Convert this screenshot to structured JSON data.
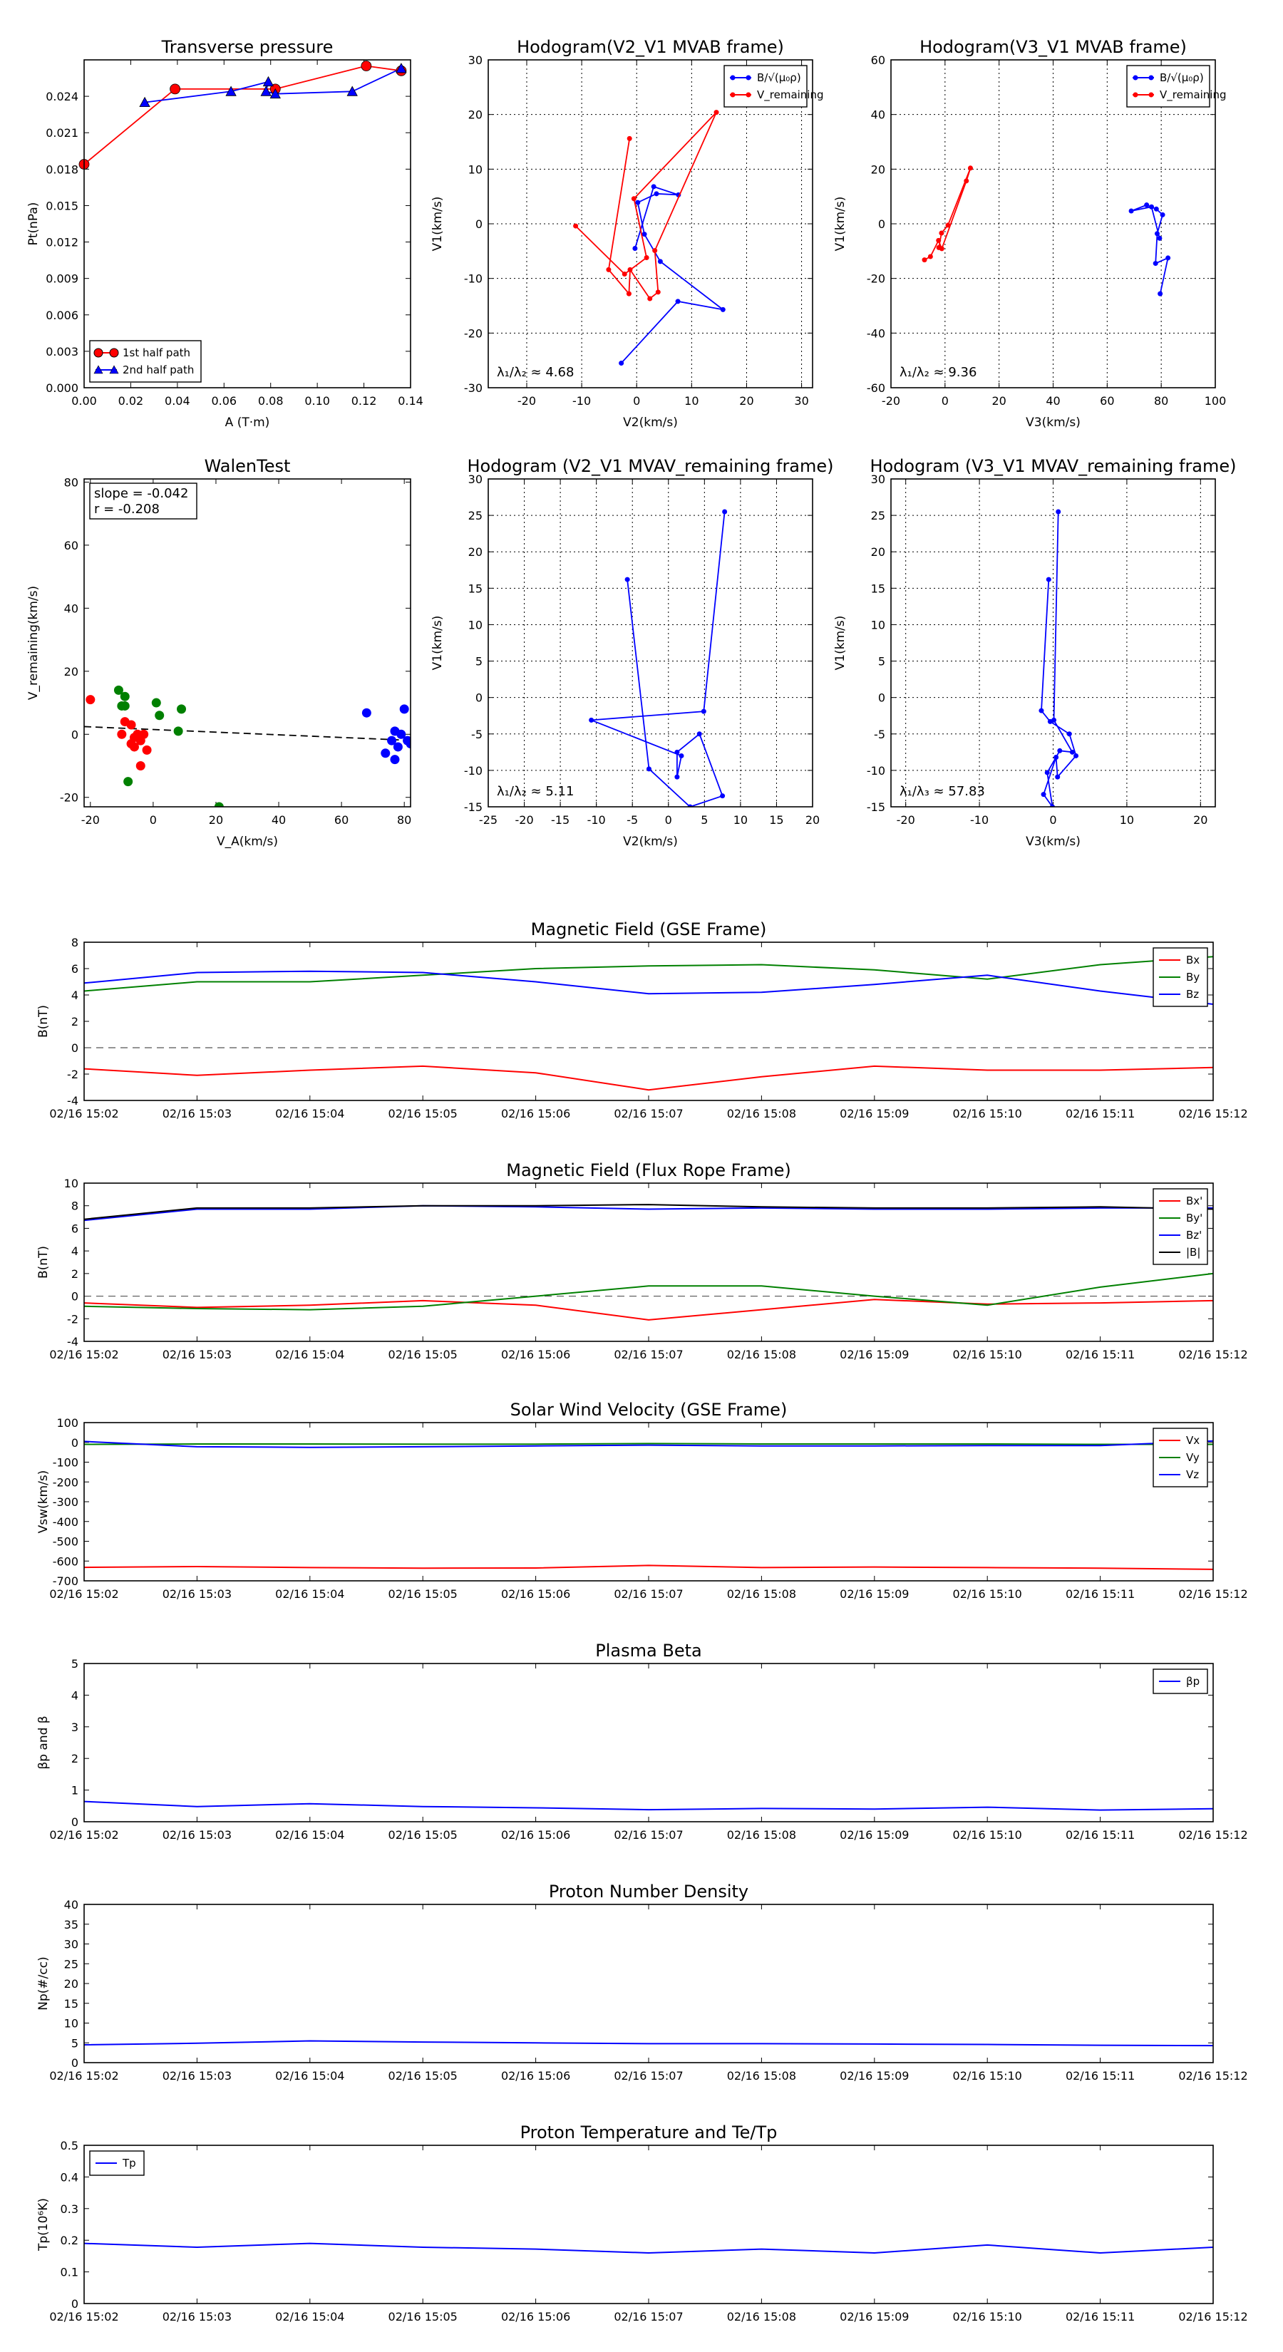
{
  "time_ticks": [
    "02/16 15:02",
    "02/16 15:03",
    "02/16 15:04",
    "02/16 15:05",
    "02/16 15:06",
    "02/16 15:07",
    "02/16 15:08",
    "02/16 15:09",
    "02/16 15:10",
    "02/16 15:11",
    "02/16 15:12"
  ],
  "chart_data": [
    {
      "id": "tp",
      "type": "scatter-line",
      "title": "Transverse pressure",
      "xlabel": "A (T·m)",
      "ylabel": "Pt(nPa)",
      "xlim": [
        0,
        0.14
      ],
      "ylim": [
        0,
        0.027
      ],
      "xticks": [
        0,
        0.02,
        0.04,
        0.06,
        0.08,
        0.1,
        0.12,
        0.14
      ],
      "yticks": [
        0,
        0.003,
        0.006,
        0.009,
        0.012,
        0.015,
        0.018,
        0.021,
        0.024
      ],
      "xfmt": 2,
      "yfmt": 3,
      "grid": false,
      "legend": "lower-left",
      "series": [
        {
          "name": "1st half path",
          "color": "#ff0000",
          "marker": "circle",
          "x": [
            0.0,
            0.039,
            0.082,
            0.121,
            0.136
          ],
          "y": [
            0.0184,
            0.0246,
            0.0246,
            0.0265,
            0.0261
          ]
        },
        {
          "name": "2nd half path",
          "color": "#0000ff",
          "marker": "triangle",
          "x": [
            0.136,
            0.115,
            0.082,
            0.078,
            0.079,
            0.063,
            0.026
          ],
          "y": [
            0.0263,
            0.0244,
            0.0242,
            0.0244,
            0.0252,
            0.0244,
            0.0235
          ]
        }
      ]
    },
    {
      "id": "hod1",
      "type": "line",
      "title": "Hodogram(V2_V1 MVAB frame)",
      "xlabel": "V2(km/s)",
      "ylabel": "V1(km/s)",
      "xlim": [
        -27,
        32
      ],
      "ylim": [
        -30,
        30
      ],
      "xticks": [
        -20,
        -10,
        0,
        10,
        20,
        30
      ],
      "yticks": [
        -30,
        -20,
        -10,
        0,
        10,
        20,
        30
      ],
      "grid": true,
      "legend": "top-right",
      "annotation": "λ₁/λ₂ ≈ 4.68",
      "series": [
        {
          "name": "B/√(μ₀ρ)",
          "color": "#0000ff",
          "marker": "circle",
          "x": [
            -2.8,
            7.5,
            15.7,
            4.3,
            1.4,
            0.2,
            3.6,
            7.6,
            3.1,
            -0.3
          ],
          "y": [
            -25.5,
            -14.2,
            -15.7,
            -6.9,
            -1.9,
            3.9,
            5.5,
            5.3,
            6.8,
            -4.5
          ]
        },
        {
          "name": "V_remaining",
          "color": "#ff0000",
          "marker": "circle",
          "x": [
            -1.3,
            -5.1,
            -1.4,
            -1.2,
            2.4,
            3.9,
            3.3,
            14.5,
            -0.5,
            1.8,
            -2.2,
            -11.1
          ],
          "y": [
            15.6,
            -8.4,
            -12.8,
            -8.4,
            -13.7,
            -12.5,
            -4.9,
            20.4,
            4.6,
            -6.2,
            -9.2,
            -0.4
          ]
        }
      ]
    },
    {
      "id": "hod2",
      "type": "line",
      "title": "Hodogram(V3_V1 MVAB frame)",
      "xlabel": "V3(km/s)",
      "ylabel": "V1(km/s)",
      "xlim": [
        -20,
        100
      ],
      "ylim": [
        -60,
        60
      ],
      "xticks": [
        -20,
        0,
        20,
        40,
        60,
        80,
        100
      ],
      "yticks": [
        -60,
        -40,
        -20,
        0,
        20,
        40,
        60
      ],
      "grid": true,
      "legend": "top-right",
      "annotation": "λ₁/λ₂ ≈ 9.36",
      "series": [
        {
          "name": "B/√(μ₀ρ)",
          "color": "#0000ff",
          "marker": "circle",
          "x": [
            79.6,
            82.5,
            77.9,
            78.5,
            80.5,
            78.2,
            74.6,
            68.9,
            76.4,
            79.4
          ],
          "y": [
            -25.6,
            -12.5,
            -14.5,
            -3.6,
            3.3,
            5.4,
            6.9,
            4.7,
            6.2,
            -5.3
          ]
        },
        {
          "name": "V_remaining",
          "color": "#ff0000",
          "marker": "circle",
          "x": [
            -7.6,
            -5.4,
            -2.4,
            -1.2,
            7.9,
            9.4,
            1.1,
            -1.3,
            -2.3
          ],
          "y": [
            -13.2,
            -12.0,
            -6.1,
            -9.1,
            15.7,
            20.4,
            -0.5,
            -3.4,
            -8.7
          ]
        }
      ]
    },
    {
      "id": "walen",
      "type": "scatter",
      "title": "WalenTest",
      "xlabel": "V_A(km/s)",
      "ylabel": "V_remaining(km/s)",
      "xlim": [
        -22,
        82
      ],
      "ylim": [
        -23,
        81
      ],
      "xticks": [
        -20,
        0,
        20,
        40,
        60,
        80
      ],
      "yticks": [
        -20,
        0,
        20,
        40,
        60,
        80
      ],
      "grid": false,
      "legend": "none",
      "annotation_lines": [
        "slope = -0.042",
        "r = -0.208"
      ],
      "fit": {
        "slope": -0.042,
        "intercept": 1.52
      },
      "series": [
        {
          "color": "#ff0000",
          "x": [
            -20,
            -10,
            -9,
            -7,
            -7,
            -6,
            -6,
            -5,
            -4,
            -4,
            -3,
            -2
          ],
          "y": [
            11,
            0,
            4,
            3,
            -3,
            -1,
            -4,
            0,
            -2,
            -10,
            0,
            -5
          ]
        },
        {
          "color": "#008000",
          "x": [
            -11,
            -10,
            -9,
            -9,
            -8,
            1,
            2,
            8,
            9,
            21
          ],
          "y": [
            14,
            9,
            12,
            9,
            -15,
            10,
            6,
            1,
            8,
            -23
          ]
        },
        {
          "color": "#0000ff",
          "x": [
            68,
            74,
            76,
            77,
            77,
            78,
            79,
            80,
            81,
            82
          ],
          "y": [
            6.8,
            -6,
            -2,
            1,
            -8,
            -4,
            0,
            8,
            -2,
            -3
          ]
        }
      ]
    },
    {
      "id": "hod3",
      "type": "line",
      "title": "Hodogram (V2_V1 MVAV_remaining frame)",
      "xlabel": "V2(km/s)",
      "ylabel": "V1(km/s)",
      "xlim": [
        -25,
        20
      ],
      "ylim": [
        -15,
        30
      ],
      "xticks": [
        -25,
        -20,
        -15,
        -10,
        -5,
        0,
        5,
        10,
        15,
        20
      ],
      "yticks": [
        -15,
        -10,
        -5,
        0,
        5,
        10,
        15,
        20,
        25,
        30
      ],
      "grid": true,
      "legend": "none",
      "annotation": "λ₁/λ₂ ≈ 5.11",
      "series": [
        {
          "color": "#0000ff",
          "marker": "circle",
          "x": [
            -5.7,
            -2.7,
            3.0,
            7.5,
            4.3,
            1.2,
            1.2,
            1.8,
            -10.7,
            4.9,
            7.8
          ],
          "y": [
            16.2,
            -9.8,
            -15.0,
            -13.5,
            -5.0,
            -7.5,
            -10.9,
            -8.0,
            -3.1,
            -1.9,
            25.5
          ]
        }
      ]
    },
    {
      "id": "hod4",
      "type": "line",
      "title": "Hodogram (V3_V1 MVAV_remaining frame)",
      "xlabel": "V3(km/s)",
      "ylabel": "V1(km/s)",
      "xlim": [
        -22,
        22
      ],
      "ylim": [
        -15,
        30
      ],
      "xticks": [
        -20,
        -10,
        0,
        10,
        20
      ],
      "yticks": [
        -15,
        -10,
        -5,
        0,
        5,
        10,
        15,
        20,
        25,
        30
      ],
      "grid": true,
      "legend": "none",
      "annotation": "λ₁/λ₃ ≈ 57.83",
      "series": [
        {
          "color": "#0000ff",
          "marker": "circle",
          "x": [
            -0.6,
            -1.6,
            -0.4,
            2.2,
            3.1,
            0.6,
            0.4,
            -1.3,
            -0.1,
            -0.8,
            0.9,
            2.6,
            0.1,
            0.7
          ],
          "y": [
            16.2,
            -1.8,
            -3.3,
            -5.0,
            -8.0,
            -10.9,
            -8.2,
            -13.3,
            -15.0,
            -10.3,
            -7.3,
            -7.5,
            -3.1,
            25.5
          ]
        }
      ]
    },
    {
      "id": "bgse",
      "type": "line",
      "title": "Magnetic Field (GSE Frame)",
      "xlabel": "",
      "ylabel": "B(nT)",
      "ylim": [
        -4,
        8
      ],
      "yticks": [
        -4,
        -2,
        0,
        2,
        4,
        6,
        8
      ],
      "grid": false,
      "legend": "top-right",
      "zero_line": true,
      "series": [
        {
          "name": "Bx",
          "color": "#ff0000",
          "values": [
            -1.6,
            -2.1,
            -1.7,
            -1.4,
            -1.9,
            -3.2,
            -2.2,
            -1.4,
            -1.7,
            -1.7,
            -1.5
          ]
        },
        {
          "name": "By",
          "color": "#008000",
          "values": [
            4.3,
            5.0,
            5.0,
            5.5,
            6.0,
            6.2,
            6.3,
            5.9,
            5.2,
            6.3,
            6.9
          ]
        },
        {
          "name": "Bz",
          "color": "#0000ff",
          "values": [
            4.9,
            5.7,
            5.8,
            5.7,
            5.0,
            4.1,
            4.2,
            4.8,
            5.5,
            4.3,
            3.3
          ]
        }
      ]
    },
    {
      "id": "bfr",
      "type": "line",
      "title": "Magnetic Field (Flux Rope Frame)",
      "xlabel": "",
      "ylabel": "B(nT)",
      "ylim": [
        -4,
        10
      ],
      "yticks": [
        -4,
        -2,
        0,
        2,
        4,
        6,
        8,
        10
      ],
      "grid": false,
      "legend": "top-right",
      "zero_line": true,
      "series": [
        {
          "name": "Bx'",
          "color": "#ff0000",
          "values": [
            -0.6,
            -1.0,
            -0.8,
            -0.4,
            -0.8,
            -2.1,
            -1.2,
            -0.3,
            -0.7,
            -0.6,
            -0.4
          ]
        },
        {
          "name": "By'",
          "color": "#008000",
          "values": [
            -0.9,
            -1.1,
            -1.2,
            -0.9,
            0.0,
            0.9,
            0.9,
            0.0,
            -0.8,
            0.8,
            2.0
          ]
        },
        {
          "name": "Bz'",
          "color": "#0000ff",
          "values": [
            6.7,
            7.7,
            7.7,
            8.0,
            7.9,
            7.7,
            7.8,
            7.7,
            7.7,
            7.8,
            7.8
          ]
        },
        {
          "name": "|B|",
          "color": "#000000",
          "values": [
            6.8,
            7.8,
            7.8,
            8.0,
            8.0,
            8.1,
            7.9,
            7.8,
            7.8,
            7.9,
            7.7
          ]
        }
      ]
    },
    {
      "id": "vsw",
      "type": "line",
      "title": "Solar Wind Velocity (GSE Frame)",
      "xlabel": "",
      "ylabel": "Vsw(km/s)",
      "ylim": [
        -700,
        100
      ],
      "yticks": [
        -700,
        -600,
        -500,
        -400,
        -300,
        -200,
        -100,
        0,
        100
      ],
      "grid": false,
      "legend": "top-right",
      "zero_line": false,
      "series": [
        {
          "name": "Vx",
          "color": "#ff0000",
          "values": [
            -632,
            -628,
            -633,
            -636,
            -635,
            -622,
            -633,
            -630,
            -633,
            -636,
            -642
          ]
        },
        {
          "name": "Vy",
          "color": "#008000",
          "values": [
            -10,
            -8,
            -8,
            -9,
            -9,
            -6,
            -8,
            -8,
            -8,
            -10,
            -10
          ]
        },
        {
          "name": "Vz",
          "color": "#0000ff",
          "values": [
            5,
            -22,
            -25,
            -22,
            -18,
            -14,
            -18,
            -18,
            -16,
            -16,
            7
          ]
        }
      ]
    },
    {
      "id": "beta",
      "type": "line",
      "title": "Plasma Beta",
      "xlabel": "",
      "ylabel": "βp and β",
      "ylim": [
        0,
        5
      ],
      "yticks": [
        0,
        1,
        2,
        3,
        4,
        5
      ],
      "grid": false,
      "legend": "top-right",
      "zero_line": false,
      "series": [
        {
          "name": "βp",
          "color": "#0000ff",
          "values": [
            0.64,
            0.48,
            0.57,
            0.48,
            0.44,
            0.38,
            0.42,
            0.4,
            0.46,
            0.37,
            0.41
          ]
        }
      ]
    },
    {
      "id": "np",
      "type": "line",
      "title": "Proton Number Density",
      "xlabel": "",
      "ylabel": "Np(#/cc)",
      "ylim": [
        0,
        40
      ],
      "yticks": [
        0,
        5,
        10,
        15,
        20,
        25,
        30,
        35,
        40
      ],
      "grid": false,
      "legend": "none",
      "zero_line": false,
      "series": [
        {
          "color": "#0000ff",
          "values": [
            4.5,
            4.9,
            5.5,
            5.2,
            5.0,
            4.8,
            4.8,
            4.7,
            4.6,
            4.4,
            4.3
          ]
        }
      ]
    },
    {
      "id": "tpr",
      "type": "line",
      "title": "Proton Temperature and Te/Tp",
      "xlabel": "",
      "ylabel": "Tp(10⁶K)",
      "ylim": [
        0,
        0.5
      ],
      "yticks": [
        0,
        0.1,
        0.2,
        0.3,
        0.4,
        0.5
      ],
      "grid": false,
      "legend": "top-left",
      "zero_line": false,
      "series": [
        {
          "name": "Tp",
          "color": "#0000ff",
          "values": [
            0.19,
            0.178,
            0.19,
            0.178,
            0.172,
            0.16,
            0.172,
            0.16,
            0.185,
            0.16,
            0.178
          ]
        }
      ]
    }
  ]
}
